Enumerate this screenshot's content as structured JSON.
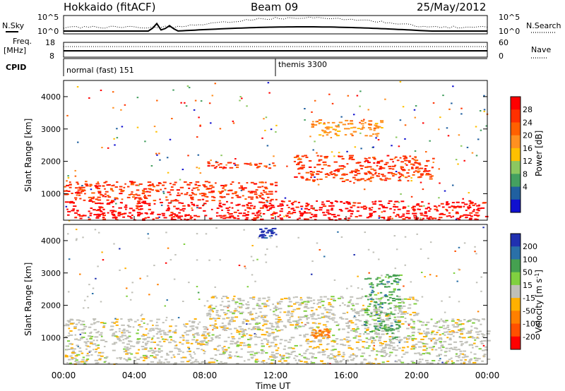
{
  "header": {
    "title_left": "Hokkaido (fitACF)",
    "title_center": "Beam 09",
    "title_right": "25/May/2012"
  },
  "top_panel": {
    "label_nsky": "N.Sky",
    "label_nsearch": "N.Search",
    "label_freq": "Freq.",
    "label_freq_unit": "[MHz]",
    "label_nave": "Nave",
    "label_cpid": "CPID",
    "left_ticks_top": "10^5",
    "left_ticks_bottom": "10^0",
    "right_ticks_top": "10^5",
    "right_ticks_bottom": "10^0",
    "freq_ticks": [
      "18",
      "8"
    ],
    "nave_ticks": [
      "60",
      "0"
    ],
    "cpid_1": "normal (fast) 151",
    "cpid_2": "themis 3300"
  },
  "power_legend": {
    "title": "Power [dB]",
    "ticks": [
      "28",
      "24",
      "20",
      "16",
      "12",
      "8",
      "4"
    ],
    "colors": [
      "#ff0000",
      "#ff3000",
      "#ff6000",
      "#ff9020",
      "#ffc000",
      "#8cc860",
      "#44a060",
      "#2060a0",
      "#1010d0"
    ]
  },
  "velocity_legend": {
    "title": "Velocity [m s",
    "title_sup": "-1",
    "title_end": "]",
    "ticks": [
      "200",
      "100",
      "50",
      "15",
      "-15",
      "-50",
      "-100",
      "-200"
    ],
    "colors": [
      "#2030b0",
      "#2a70a8",
      "#45a050",
      "#80d040",
      "#c0c0b8",
      "#ffb000",
      "#ff8000",
      "#ff5000",
      "#ff0000"
    ]
  },
  "axes": {
    "ylabel": "Slant Range [km]",
    "xlabel": "Time UT",
    "yticks": [
      "1000",
      "2000",
      "3000",
      "4000"
    ],
    "xticks": [
      "00:00",
      "04:00",
      "08:00",
      "12:00",
      "16:00",
      "20:00",
      "00:00"
    ]
  },
  "chart_data": [
    {
      "type": "heatmap",
      "name": "Power",
      "x": [
        "00:00",
        "04:00",
        "08:00",
        "12:00",
        "16:00",
        "20:00",
        "00:00"
      ],
      "ylabel": "Slant Range [km]",
      "xlabel": "Time UT",
      "ylim": [
        180,
        4500
      ],
      "colorbar": {
        "label": "Power [dB]",
        "range": [
          0,
          30
        ]
      },
      "features": [
        {
          "t_start": 0,
          "t_end": 24,
          "range_km": [
            200,
            800
          ],
          "power_db": 28
        },
        {
          "t_start": 0,
          "t_end": 12,
          "range_km": [
            800,
            1400
          ],
          "power_db": 24
        },
        {
          "t_start": 8,
          "t_end": 12,
          "range_km": [
            1800,
            2000
          ],
          "power_db": 26
        },
        {
          "t_start": 13,
          "t_end": 21,
          "range_km": [
            1400,
            2200
          ],
          "power_db": 26
        },
        {
          "t_start": 14,
          "t_end": 18,
          "range_km": [
            2800,
            3300
          ],
          "power_db": 16
        }
      ]
    },
    {
      "type": "heatmap",
      "name": "Velocity",
      "x": [
        "00:00",
        "04:00",
        "08:00",
        "12:00",
        "16:00",
        "20:00",
        "00:00"
      ],
      "ylabel": "Slant Range [km]",
      "xlabel": "Time UT",
      "ylim": [
        180,
        4500
      ],
      "colorbar": {
        "label": "Velocity [m s-1]",
        "range": [
          -200,
          200
        ]
      },
      "features": [
        {
          "t_start": 0,
          "t_end": 24,
          "range_km": [
            200,
            1600
          ],
          "velocity": 0
        },
        {
          "t_start": 8,
          "t_end": 20,
          "range_km": [
            1600,
            2300
          ],
          "velocity": 0
        },
        {
          "t_start": 11,
          "t_end": 12,
          "range_km": [
            4100,
            4400
          ],
          "velocity": 200
        },
        {
          "t_start": 17,
          "t_end": 19,
          "range_km": [
            1000,
            3000
          ],
          "velocity": 50
        },
        {
          "t_start": 14,
          "t_end": 15,
          "range_km": [
            1000,
            1300
          ],
          "velocity": -50
        }
      ]
    }
  ]
}
